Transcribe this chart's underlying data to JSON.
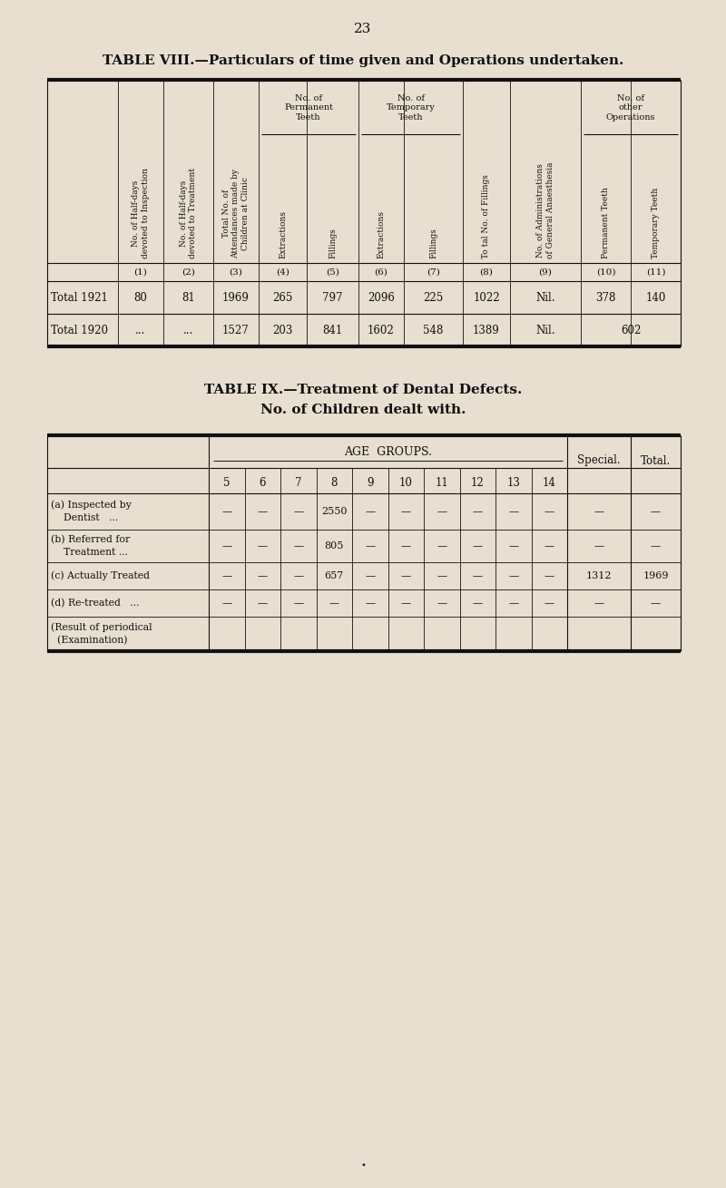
{
  "bg_color": "#e8dfd0",
  "page_number": "23",
  "table8_title": "TABLE VIII.—Particulars of time given and Operations undertaken.",
  "table8_col_headers_rotated": [
    "No. of Half-days\ndevoted to Inspection",
    "No. of Half-days\ndevoted to Treatment",
    "Total No. of\nAttendances made by\nChildren at Clinic",
    "Extractions",
    "Fillings",
    "Extractions",
    "Fillings",
    "To tal No. of Fillings",
    "No. of Administrations\nof General Anaesthesia",
    "Permanent Teeth",
    "Temporary Teeth"
  ],
  "table8_col_nums": [
    "(1)",
    "(2)",
    "(3)",
    "(4)",
    "(5)",
    "(6)",
    "(7)",
    "(8)",
    "(9)",
    "(10)",
    "(11)"
  ],
  "table8_rows": [
    {
      "label": "Total 1921",
      "values": [
        "80",
        "81",
        "1969",
        "265",
        "797",
        "2096",
        "225",
        "1022",
        "Nil.",
        "378",
        "140"
      ]
    },
    {
      "label": "Total 1920",
      "values": [
        "...",
        "...",
        "1527",
        "203",
        "841",
        "1602",
        "548",
        "1389",
        "Nil.",
        "602",
        ""
      ]
    }
  ],
  "table9_title1": "TABLE IX.—Treatment of Dental Defects.",
  "table9_title2": "No. of Children dealt with.",
  "table9_age_groups": [
    "5",
    "6",
    "7",
    "8",
    "9",
    "10",
    "11",
    "12",
    "13",
    "14"
  ],
  "table9_rows": [
    {
      "label_lines": [
        "(a) Inspected by",
        "    Dentist   ..."
      ],
      "age_vals": [
        "—",
        "—",
        "—",
        "2550",
        "—",
        "—",
        "—",
        "—",
        "—",
        "—"
      ],
      "special": "—",
      "total": "—"
    },
    {
      "label_lines": [
        "(b) Referred for",
        "    Treatment ..."
      ],
      "age_vals": [
        "—",
        "—",
        "—",
        "805",
        "—",
        "—",
        "—",
        "—",
        "—",
        "—"
      ],
      "special": "—",
      "total": "—"
    },
    {
      "label_lines": [
        "(c) Actually Treated"
      ],
      "age_vals": [
        "—",
        "—",
        "—",
        "657",
        "—",
        "—",
        "—",
        "—",
        "—",
        "—"
      ],
      "special": "1312",
      "total": "1969"
    },
    {
      "label_lines": [
        "(d) Re-treated   ..."
      ],
      "age_vals": [
        "—",
        "—",
        "—",
        "—",
        "—",
        "—",
        "—",
        "—",
        "—",
        "—"
      ],
      "special": "—",
      "total": "—"
    },
    {
      "label_lines": [
        "(Result of periodical",
        "  (Examination)"
      ],
      "age_vals": [
        "",
        "",
        "",
        "",
        "",
        "",
        "",
        "",
        "",
        ""
      ],
      "special": "",
      "total": ""
    }
  ]
}
